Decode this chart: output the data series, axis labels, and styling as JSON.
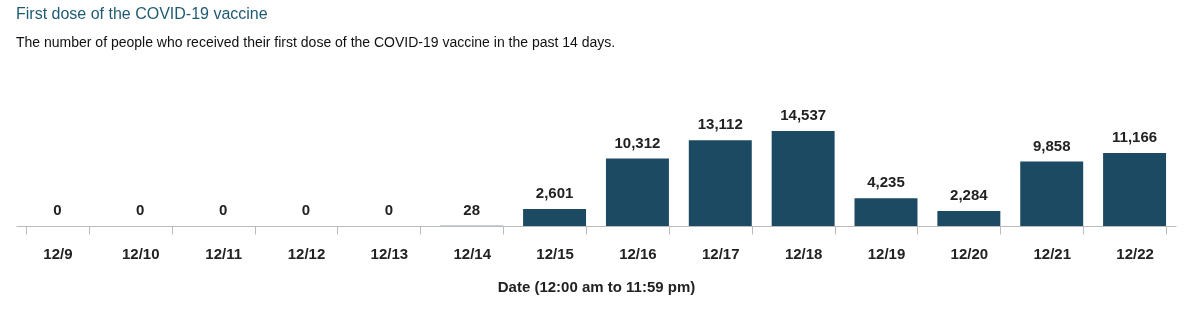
{
  "chart_data": {
    "type": "bar",
    "title": "First dose of the COVID-19 vaccine",
    "subtitle": "The number of people who received their first dose of the COVID-19 vaccine in the past 14 days.",
    "xlabel": "Date (12:00 am to 11:59 pm)",
    "categories": [
      "12/9",
      "12/10",
      "12/11",
      "12/12",
      "12/13",
      "12/14",
      "12/15",
      "12/16",
      "12/17",
      "12/18",
      "12/19",
      "12/20",
      "12/21",
      "12/22"
    ],
    "values": [
      0,
      0,
      0,
      0,
      0,
      28,
      2601,
      10312,
      13112,
      14537,
      4235,
      2284,
      9858,
      11166
    ],
    "value_labels": [
      "0",
      "0",
      "0",
      "0",
      "0",
      "28",
      "2,601",
      "10,312",
      "13,112",
      "14,537",
      "4,235",
      "2,284",
      "9,858",
      "11,166"
    ],
    "color": "#1d4a63"
  }
}
